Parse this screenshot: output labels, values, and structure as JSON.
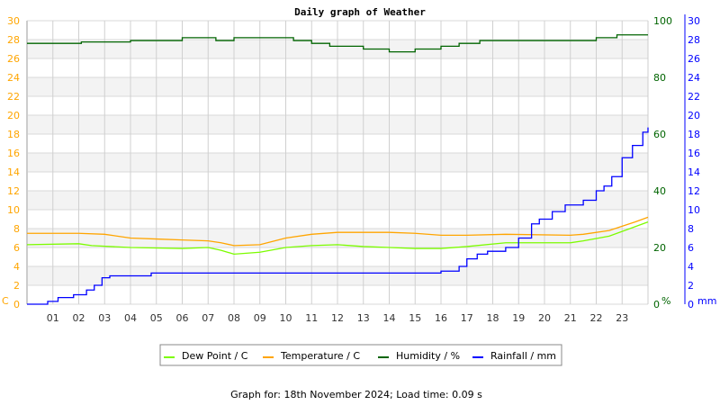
{
  "chart_data": {
    "type": "line",
    "title": "Daily graph of Weather",
    "x_ticks": [
      "01",
      "02",
      "03",
      "04",
      "05",
      "06",
      "07",
      "08",
      "09",
      "10",
      "11",
      "12",
      "13",
      "14",
      "15",
      "16",
      "17",
      "18",
      "19",
      "20",
      "21",
      "22",
      "23"
    ],
    "xlim": [
      0,
      24
    ],
    "axes": {
      "left": {
        "label": "C",
        "ylim": [
          0,
          30
        ],
        "ticks": [
          0,
          2,
          4,
          6,
          8,
          10,
          12,
          14,
          16,
          18,
          20,
          22,
          24,
          26,
          28,
          30
        ],
        "color": "#ffa500"
      },
      "right1": {
        "label": "%",
        "ylim": [
          0,
          100
        ],
        "ticks": [
          0,
          20,
          40,
          60,
          80,
          100
        ],
        "color": "#006400"
      },
      "right2": {
        "label": "mm",
        "ylim": [
          0,
          30
        ],
        "ticks": [
          0,
          2,
          4,
          6,
          8,
          10,
          12,
          14,
          16,
          18,
          20,
          22,
          24,
          26,
          28,
          30
        ],
        "color": "#0000ff"
      }
    },
    "grid": true,
    "legend_placement": "bottom",
    "series": [
      {
        "name": "Dew Point / C",
        "axis": "left",
        "color": "#7cfc00",
        "x": [
          0,
          2,
          2.5,
          4,
          6,
          7,
          7.5,
          8,
          9,
          10,
          11,
          12,
          13,
          14,
          15,
          16,
          17,
          18.5,
          21,
          21.5,
          22.5,
          23.5,
          24
        ],
        "y": [
          6.3,
          6.4,
          6.2,
          6.0,
          5.9,
          6.0,
          5.7,
          5.3,
          5.5,
          6.0,
          6.2,
          6.3,
          6.1,
          6.0,
          5.9,
          5.9,
          6.1,
          6.5,
          6.5,
          6.7,
          7.2,
          8.2,
          8.7
        ]
      },
      {
        "name": "Temperature / C",
        "axis": "left",
        "color": "#ffa500",
        "x": [
          0,
          2,
          3,
          4,
          5,
          6,
          7,
          7.5,
          8,
          9,
          10,
          11,
          12,
          13,
          14,
          15,
          16,
          17,
          18.5,
          21,
          21.5,
          22.5,
          23.5,
          24
        ],
        "y": [
          7.5,
          7.5,
          7.4,
          7.0,
          6.9,
          6.8,
          6.7,
          6.5,
          6.2,
          6.3,
          7.0,
          7.4,
          7.6,
          7.6,
          7.6,
          7.5,
          7.3,
          7.3,
          7.4,
          7.3,
          7.4,
          7.8,
          8.7,
          9.2
        ]
      },
      {
        "name": "Humidity / %",
        "axis": "right1",
        "color": "#006400",
        "step": true,
        "x": [
          0,
          2.1,
          4,
          6,
          7.3,
          8,
          10.3,
          11,
          11.7,
          13,
          14,
          15,
          16,
          16.7,
          17.5,
          22,
          22.8,
          24
        ],
        "y": [
          92,
          92.5,
          93,
          94,
          93,
          94,
          93,
          92,
          91,
          90,
          89,
          90,
          91,
          92,
          93,
          94,
          95,
          95
        ]
      },
      {
        "name": "Rainfall / mm",
        "axis": "right2",
        "color": "#0000ff",
        "step": true,
        "x": [
          0,
          0.8,
          1.2,
          1.8,
          2.3,
          2.6,
          2.9,
          3.2,
          4.8,
          16,
          16.7,
          17,
          17.4,
          17.8,
          18.5,
          19,
          19.5,
          19.8,
          20.3,
          20.8,
          21.5,
          22,
          22.3,
          22.6,
          23,
          23.4,
          23.8,
          24
        ],
        "y": [
          0,
          0.3,
          0.7,
          1.0,
          1.5,
          2.0,
          2.8,
          3.0,
          3.3,
          3.5,
          4.0,
          4.8,
          5.3,
          5.6,
          6.0,
          7.0,
          8.5,
          9.0,
          9.8,
          10.5,
          11.0,
          12.0,
          12.5,
          13.5,
          15.5,
          16.8,
          18.2,
          18.7
        ]
      }
    ]
  },
  "footer": "Graph for: 18th November 2024; Load time: 0.09 s"
}
